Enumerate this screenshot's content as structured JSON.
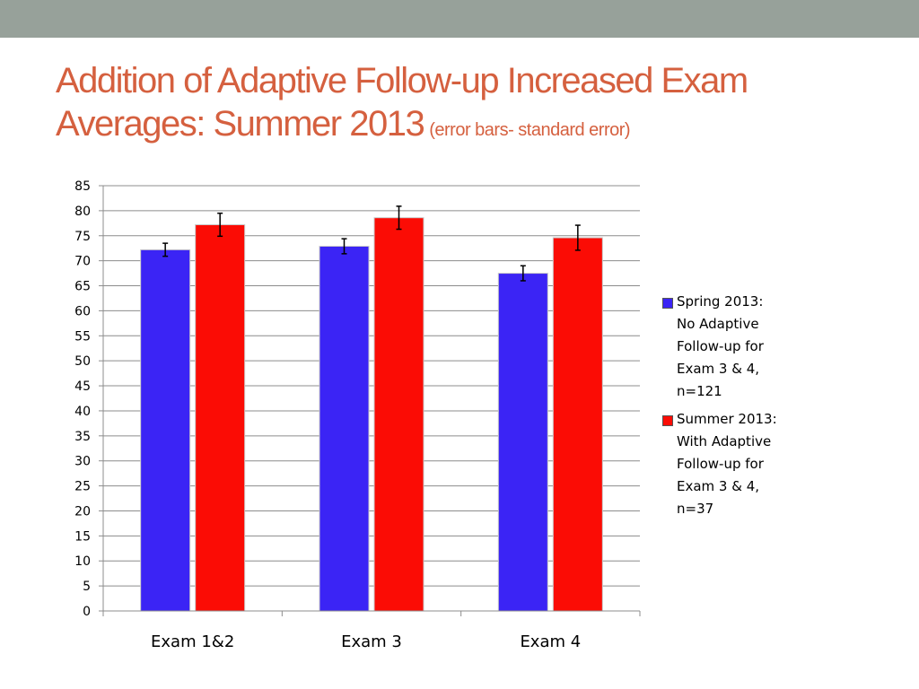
{
  "slide": {
    "title_line1": "Addition of Adaptive Follow-up Increased Exam",
    "title_line2": "Averages: Summer 2013",
    "title_note": "(error bars- standard error)"
  },
  "colors": {
    "header_band": "#97a19a",
    "title": "#d5603f",
    "series": [
      "#3b24f5",
      "#fb0c05"
    ]
  },
  "chart_data": {
    "type": "bar",
    "title": "",
    "xlabel": "",
    "ylabel": "",
    "categories": [
      "Exam 1&2",
      "Exam 3",
      "Exam 4"
    ],
    "series": [
      {
        "name": "Spring 2013:\nNo Adaptive\nFollow-up for\nExam 3 & 4,\nn=121",
        "values": [
          72.2,
          72.9,
          67.5
        ],
        "error": [
          1.3,
          1.5,
          1.5
        ]
      },
      {
        "name": "Summer 2013:\nWith Adaptive\nFollow-up for\nExam 3 & 4,\nn=37",
        "values": [
          77.2,
          78.6,
          74.6
        ],
        "error": [
          2.3,
          2.3,
          2.5
        ]
      }
    ],
    "ylim": [
      0,
      85
    ],
    "yticks": [
      0,
      5,
      10,
      15,
      20,
      25,
      30,
      35,
      40,
      45,
      50,
      55,
      60,
      65,
      70,
      75,
      80,
      85
    ],
    "grid": true,
    "legend": "right",
    "error_bars": "standard error"
  }
}
